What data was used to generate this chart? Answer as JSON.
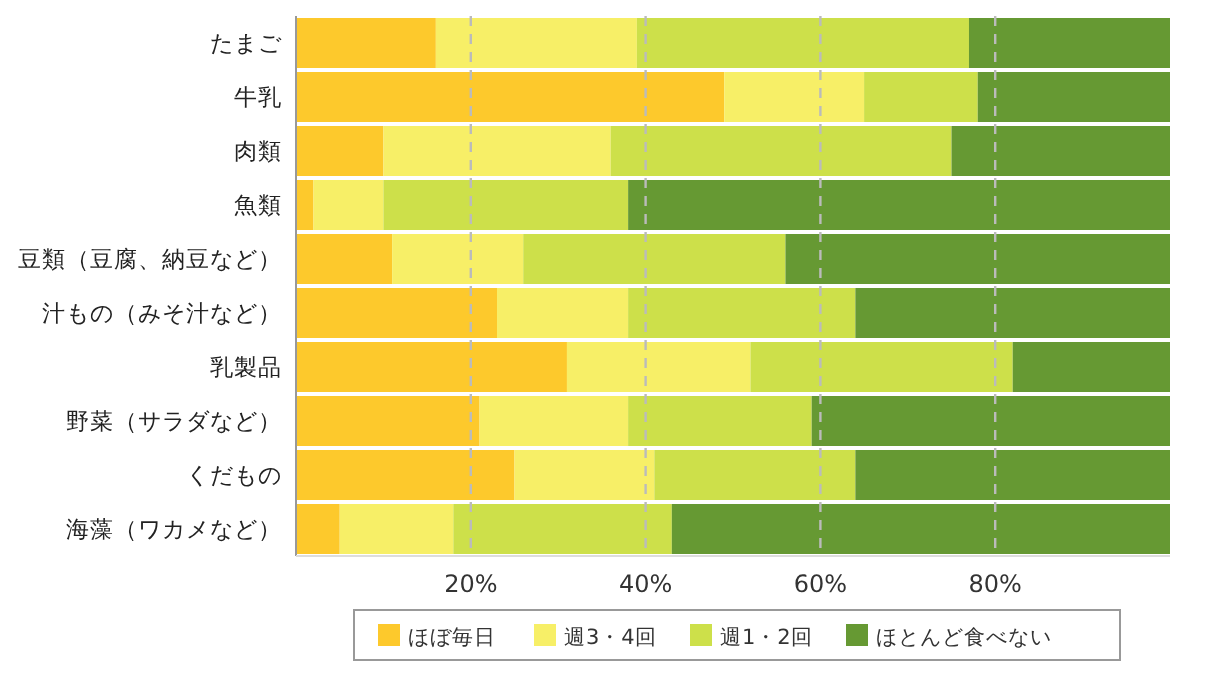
{
  "chart_data": {
    "type": "bar",
    "orientation": "horizontal",
    "stacked": true,
    "categories": [
      "たまご",
      "牛乳",
      "肉類",
      "魚類",
      "豆類（豆腐、納豆など）",
      "汁もの（みそ汁など）",
      "乳製品",
      "野菜（サラダなど）",
      "くだもの",
      "海藻（ワカメなど）"
    ],
    "series": [
      {
        "name": "ほぼ毎日",
        "color": "#fdc92c",
        "values": [
          16,
          49,
          10,
          2,
          11,
          23,
          31,
          21,
          25,
          5
        ]
      },
      {
        "name": "週3・4回",
        "color": "#f7ef67",
        "values": [
          23,
          16,
          26,
          8,
          15,
          15,
          21,
          17,
          16,
          13
        ]
      },
      {
        "name": "週1・2回",
        "color": "#cde04a",
        "values": [
          38,
          13,
          39,
          28,
          30,
          26,
          30,
          21,
          23,
          25
        ]
      },
      {
        "name": "ほとんど食べない",
        "color": "#669933",
        "values": [
          23,
          22,
          25,
          62,
          44,
          36,
          18,
          41,
          36,
          57
        ]
      }
    ],
    "xlim": [
      0,
      100
    ],
    "xticks": [
      {
        "value": 20,
        "label": "20%"
      },
      {
        "value": 40,
        "label": "40%"
      },
      {
        "value": 60,
        "label": "60%"
      },
      {
        "value": 80,
        "label": "80%"
      }
    ],
    "grid": "x",
    "legend": "bottom"
  }
}
